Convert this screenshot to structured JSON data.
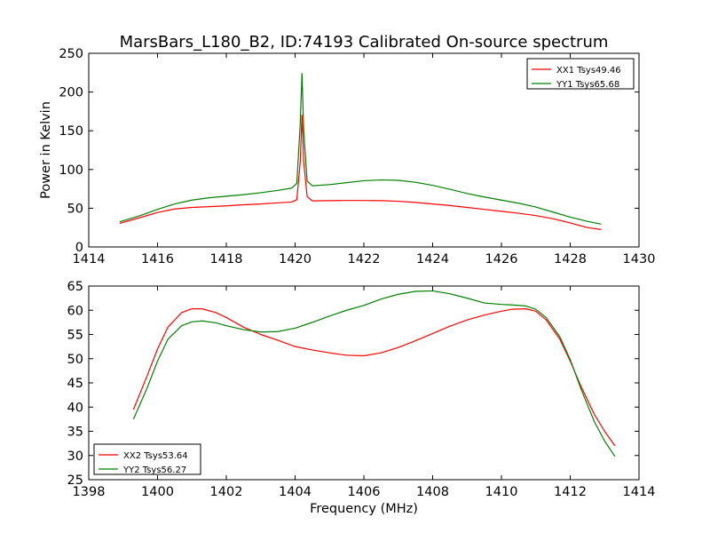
{
  "chart_data": [
    {
      "type": "line",
      "title": "MarsBars_L180_B2, ID:74193 Calibrated On-source spectrum",
      "xlabel": "",
      "ylabel": "Power in Kelvin",
      "xlim": [
        1414,
        1430
      ],
      "ylim": [
        0,
        250
      ],
      "xticks": [
        1414,
        1416,
        1418,
        1420,
        1422,
        1424,
        1426,
        1428,
        1430
      ],
      "yticks": [
        0,
        50,
        100,
        150,
        200,
        250
      ],
      "grid": false,
      "legend_position": "top-right",
      "series": [
        {
          "name": "XX1 Tsys49.46",
          "color": "#ff0000",
          "x": [
            1414.9,
            1415.5,
            1416.0,
            1416.5,
            1417.0,
            1417.5,
            1418.0,
            1418.5,
            1419.0,
            1419.5,
            1419.9,
            1420.05,
            1420.15,
            1420.2,
            1420.25,
            1420.35,
            1420.5,
            1421.0,
            1421.5,
            1422.0,
            1422.5,
            1423.0,
            1423.5,
            1424.0,
            1424.5,
            1425.0,
            1425.5,
            1426.0,
            1426.5,
            1427.0,
            1427.5,
            1428.0,
            1428.5,
            1428.9
          ],
          "y": [
            30.5,
            38.0,
            44.5,
            49.0,
            51.0,
            52.0,
            53.0,
            54.5,
            55.5,
            57.0,
            58.0,
            61.0,
            110.0,
            170.0,
            110.0,
            65.0,
            59.5,
            59.8,
            60.0,
            60.0,
            59.8,
            59.0,
            57.5,
            55.5,
            53.5,
            51.0,
            48.5,
            46.0,
            43.5,
            40.5,
            36.5,
            31.0,
            25.0,
            22.5
          ]
        },
        {
          "name": "YY1 Tsys65.68",
          "color": "#008000",
          "x": [
            1414.9,
            1415.5,
            1416.0,
            1416.5,
            1417.0,
            1417.5,
            1418.0,
            1418.5,
            1419.0,
            1419.5,
            1419.9,
            1420.05,
            1420.15,
            1420.2,
            1420.25,
            1420.35,
            1420.5,
            1421.0,
            1421.5,
            1422.0,
            1422.5,
            1423.0,
            1423.5,
            1424.0,
            1424.5,
            1425.0,
            1425.5,
            1426.0,
            1426.5,
            1427.0,
            1427.5,
            1428.0,
            1428.5,
            1428.9
          ],
          "y": [
            32.5,
            40.5,
            48.5,
            55.5,
            60.5,
            63.5,
            65.5,
            67.5,
            70.0,
            73.0,
            76.0,
            82.0,
            160.0,
            224.0,
            150.0,
            85.0,
            79.0,
            80.5,
            83.0,
            85.5,
            86.5,
            86.0,
            83.5,
            79.5,
            74.5,
            69.0,
            64.5,
            60.5,
            56.5,
            51.5,
            45.0,
            38.5,
            33.0,
            29.5
          ]
        }
      ]
    },
    {
      "type": "line",
      "title": "",
      "xlabel": "Frequency (MHz)",
      "ylabel": "",
      "xlim": [
        1398,
        1414
      ],
      "ylim": [
        25,
        65
      ],
      "xticks": [
        1398,
        1400,
        1402,
        1404,
        1406,
        1408,
        1410,
        1412,
        1414
      ],
      "yticks": [
        25,
        30,
        35,
        40,
        45,
        50,
        55,
        60,
        65
      ],
      "grid": false,
      "legend_position": "bottom-left",
      "series": [
        {
          "name": "XX2 Tsys53.64",
          "color": "#ff0000",
          "x": [
            1399.3,
            1399.7,
            1400.0,
            1400.3,
            1400.7,
            1401.0,
            1401.3,
            1401.7,
            1402.0,
            1402.5,
            1403.0,
            1403.5,
            1404.0,
            1404.5,
            1405.0,
            1405.5,
            1406.0,
            1406.5,
            1407.0,
            1407.5,
            1408.0,
            1408.5,
            1409.0,
            1409.5,
            1410.0,
            1410.3,
            1410.7,
            1411.0,
            1411.3,
            1411.7,
            1412.0,
            1412.3,
            1412.7,
            1413.0,
            1413.3
          ],
          "y": [
            39.5,
            46.5,
            52.0,
            56.5,
            59.5,
            60.3,
            60.3,
            59.5,
            58.5,
            56.5,
            55.0,
            53.8,
            52.5,
            51.8,
            51.2,
            50.7,
            50.6,
            51.2,
            52.3,
            53.7,
            55.2,
            56.7,
            58.0,
            59.0,
            59.8,
            60.2,
            60.3,
            59.8,
            58.0,
            54.0,
            49.5,
            44.5,
            38.5,
            35.0,
            32.0
          ]
        },
        {
          "name": "YY2 Tsys56.27",
          "color": "#008000",
          "x": [
            1399.3,
            1399.7,
            1400.0,
            1400.3,
            1400.7,
            1401.0,
            1401.3,
            1401.7,
            1402.0,
            1402.5,
            1403.0,
            1403.5,
            1404.0,
            1404.5,
            1405.0,
            1405.5,
            1406.0,
            1406.5,
            1407.0,
            1407.5,
            1408.0,
            1408.5,
            1409.0,
            1409.5,
            1410.0,
            1410.3,
            1410.7,
            1411.0,
            1411.3,
            1411.7,
            1412.0,
            1412.3,
            1412.7,
            1413.0,
            1413.3
          ],
          "y": [
            37.5,
            44.0,
            49.5,
            54.0,
            56.8,
            57.6,
            57.8,
            57.4,
            56.8,
            56.0,
            55.5,
            55.6,
            56.3,
            57.5,
            58.8,
            60.0,
            61.0,
            62.3,
            63.3,
            63.9,
            64.0,
            63.4,
            62.5,
            61.5,
            61.2,
            61.1,
            60.9,
            60.2,
            58.5,
            54.5,
            49.8,
            44.0,
            37.0,
            33.0,
            29.8
          ]
        }
      ]
    }
  ]
}
